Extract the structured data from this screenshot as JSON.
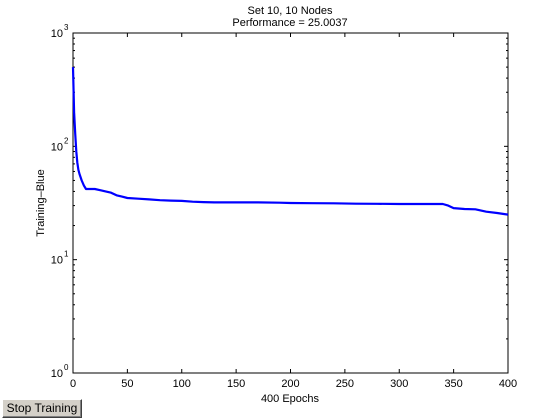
{
  "window": {
    "stop_button_label": "Stop Training"
  },
  "chart_data": {
    "type": "line",
    "title": "Set 10, 10 Nodes",
    "subtitle": "Performance = 25.0037",
    "xlabel": "400 Epochs",
    "ylabel": "Training–Blue",
    "xlim": [
      0,
      400
    ],
    "ylim": [
      1,
      1000
    ],
    "yscale": "log",
    "grid": false,
    "x_ticks": [
      0,
      50,
      100,
      150,
      200,
      250,
      300,
      350,
      400
    ],
    "y_ticks": [
      {
        "value": 1,
        "base": "10",
        "exp": "0"
      },
      {
        "value": 10,
        "base": "10",
        "exp": "1"
      },
      {
        "value": 100,
        "base": "10",
        "exp": "2"
      },
      {
        "value": 1000,
        "base": "10",
        "exp": "3"
      }
    ],
    "series": [
      {
        "color": "#0000ff",
        "x": [
          0,
          1,
          2,
          3,
          4,
          5,
          6,
          8,
          10,
          12,
          15,
          20,
          25,
          30,
          35,
          40,
          45,
          50,
          60,
          70,
          80,
          90,
          100,
          110,
          120,
          130,
          150,
          170,
          190,
          200,
          220,
          240,
          260,
          280,
          300,
          320,
          340,
          345,
          350,
          360,
          370,
          380,
          390,
          400
        ],
        "y": [
          500,
          200,
          130,
          90,
          72,
          62,
          57,
          50,
          45,
          42,
          42,
          42,
          41,
          40,
          39,
          37,
          36,
          35,
          34.5,
          34,
          33.5,
          33.2,
          33,
          32.5,
          32.2,
          32,
          32,
          32,
          31.8,
          31.6,
          31.5,
          31.4,
          31.2,
          31.1,
          31,
          31,
          31,
          30,
          28.5,
          28,
          27.8,
          26.5,
          25.8,
          25
        ]
      }
    ]
  }
}
